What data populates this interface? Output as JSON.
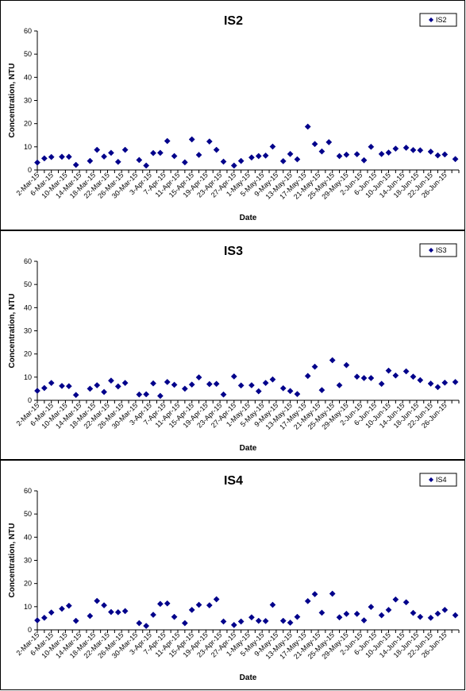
{
  "chart_data": [
    {
      "type": "scatter",
      "title": "IS2",
      "xlabel": "Date",
      "ylabel": "Concentration, NTU",
      "ylim": [
        0,
        60
      ],
      "yticks": [
        0,
        10,
        20,
        30,
        40,
        50,
        60
      ],
      "xlim": [
        "2015-03-02",
        "2015-06-30"
      ],
      "xtick_labels": [
        "2-Mar-15",
        "6-Mar-15",
        "10-Mar-15",
        "14-Mar-15",
        "18-Mar-15",
        "22-Mar-15",
        "26-Mar-15",
        "30-Mar-15",
        "3-Apr-15",
        "7-Apr-15",
        "11-Apr-15",
        "15-Apr-15",
        "19-Apr-15",
        "23-Apr-15",
        "27-Apr-15",
        "1-May-15",
        "5-May-15",
        "9-May-15",
        "13-May-15",
        "17-May-15",
        "21-May-15",
        "25-May-15",
        "29-May-15",
        "2-Jun-15",
        "6-Jun-15",
        "10-Jun-15",
        "14-Jun-15",
        "18-Jun-15",
        "22-Jun-15",
        "26-Jun-15"
      ],
      "legend_position": "top-right",
      "color": "#00008B",
      "series": [
        {
          "name": "IS2",
          "x": [
            "2015-03-02",
            "2015-03-04",
            "2015-03-06",
            "2015-03-09",
            "2015-03-11",
            "2015-03-13",
            "2015-03-17",
            "2015-03-19",
            "2015-03-21",
            "2015-03-23",
            "2015-03-25",
            "2015-03-27",
            "2015-03-31",
            "2015-04-02",
            "2015-04-04",
            "2015-04-06",
            "2015-04-08",
            "2015-04-10",
            "2015-04-13",
            "2015-04-15",
            "2015-04-17",
            "2015-04-20",
            "2015-04-22",
            "2015-04-24",
            "2015-04-27",
            "2015-04-29",
            "2015-05-02",
            "2015-05-04",
            "2015-05-06",
            "2015-05-08",
            "2015-05-11",
            "2015-05-13",
            "2015-05-15",
            "2015-05-18",
            "2015-05-20",
            "2015-05-22",
            "2015-05-24",
            "2015-05-27",
            "2015-05-29",
            "2015-06-01",
            "2015-06-03",
            "2015-06-05",
            "2015-06-08",
            "2015-06-10",
            "2015-06-12",
            "2015-06-15",
            "2015-06-17",
            "2015-06-19",
            "2015-06-22",
            "2015-06-24",
            "2015-06-26",
            "2015-06-29"
          ],
          "y": [
            3.2,
            5.0,
            5.6,
            5.7,
            5.7,
            2.2,
            3.9,
            8.7,
            5.8,
            7.4,
            3.5,
            8.7,
            4.3,
            1.9,
            7.3,
            7.4,
            12.5,
            6.0,
            3.3,
            13.2,
            6.5,
            12.3,
            8.7,
            3.6,
            1.9,
            3.9,
            5.4,
            6.0,
            6.2,
            10.1,
            3.8,
            6.9,
            4.6,
            18.7,
            11.2,
            8.0,
            12.0,
            6.0,
            6.6,
            6.8,
            4.2,
            10.0,
            6.9,
            7.5,
            9.2,
            9.6,
            8.6,
            8.5,
            7.9,
            6.3,
            6.7,
            4.7
          ]
        }
      ]
    },
    {
      "type": "scatter",
      "title": "IS3",
      "xlabel": "Date",
      "ylabel": "Concentration, NTU",
      "ylim": [
        0,
        60
      ],
      "yticks": [
        0,
        10,
        20,
        30,
        40,
        50,
        60
      ],
      "xlim": [
        "2015-03-02",
        "2015-06-30"
      ],
      "xtick_labels": [
        "2-Mar-15",
        "6-Mar-15",
        "10-Mar-15",
        "14-Mar-15",
        "18-Mar-15",
        "22-Mar-15",
        "26-Mar-15",
        "30-Mar-15",
        "3-Apr-15",
        "7-Apr-15",
        "11-Apr-15",
        "15-Apr-15",
        "19-Apr-15",
        "23-Apr-15",
        "27-Apr-15",
        "1-May-15",
        "5-May-15",
        "9-May-15",
        "13-May-15",
        "17-May-15",
        "21-May-15",
        "25-May-15",
        "29-May-15",
        "2-Jun-15",
        "6-Jun-15",
        "10-Jun-15",
        "14-Jun-15",
        "18-Jun-15",
        "22-Jun-15",
        "26-Jun-15"
      ],
      "legend_position": "top-right",
      "color": "#00008B",
      "series": [
        {
          "name": "IS3",
          "x": [
            "2015-03-02",
            "2015-03-04",
            "2015-03-06",
            "2015-03-09",
            "2015-03-11",
            "2015-03-13",
            "2015-03-17",
            "2015-03-19",
            "2015-03-21",
            "2015-03-23",
            "2015-03-25",
            "2015-03-27",
            "2015-03-31",
            "2015-04-02",
            "2015-04-04",
            "2015-04-06",
            "2015-04-08",
            "2015-04-10",
            "2015-04-13",
            "2015-04-15",
            "2015-04-17",
            "2015-04-20",
            "2015-04-22",
            "2015-04-24",
            "2015-04-27",
            "2015-04-29",
            "2015-05-02",
            "2015-05-04",
            "2015-05-06",
            "2015-05-08",
            "2015-05-11",
            "2015-05-13",
            "2015-05-15",
            "2015-05-18",
            "2015-05-20",
            "2015-05-22",
            "2015-05-25",
            "2015-05-27",
            "2015-05-29",
            "2015-06-01",
            "2015-06-03",
            "2015-06-05",
            "2015-06-08",
            "2015-06-10",
            "2015-06-12",
            "2015-06-15",
            "2015-06-17",
            "2015-06-19",
            "2015-06-22",
            "2015-06-24",
            "2015-06-26",
            "2015-06-29"
          ],
          "y": [
            4.1,
            5.3,
            7.5,
            6.2,
            6.1,
            2.3,
            5.0,
            6.5,
            3.6,
            8.5,
            6.0,
            7.5,
            2.5,
            2.6,
            7.3,
            1.9,
            7.9,
            6.7,
            5.0,
            6.8,
            9.9,
            7.0,
            7.1,
            2.5,
            10.3,
            6.4,
            6.5,
            3.9,
            7.5,
            9.0,
            5.2,
            4.0,
            2.7,
            10.5,
            14.5,
            4.4,
            17.3,
            6.5,
            15.2,
            10.2,
            9.6,
            9.6,
            7.1,
            12.8,
            10.7,
            12.5,
            10.2,
            8.7,
            7.2,
            5.7,
            7.6,
            7.9
          ]
        }
      ]
    },
    {
      "type": "scatter",
      "title": "IS4",
      "xlabel": "Date",
      "ylabel": "Concentration, NTU",
      "ylim": [
        0,
        60
      ],
      "yticks": [
        0,
        10,
        20,
        30,
        40,
        50,
        60
      ],
      "xlim": [
        "2015-03-02",
        "2015-06-30"
      ],
      "xtick_labels": [
        "2-Mar-15",
        "6-Mar-15",
        "10-Mar-15",
        "14-Mar-15",
        "18-Mar-15",
        "22-Mar-15",
        "26-Mar-15",
        "30-Mar-15",
        "3-Apr-15",
        "7-Apr-15",
        "11-Apr-15",
        "15-Apr-15",
        "19-Apr-15",
        "23-Apr-15",
        "27-Apr-15",
        "1-May-15",
        "5-May-15",
        "9-May-15",
        "13-May-15",
        "17-May-15",
        "21-May-15",
        "25-May-15",
        "29-May-15",
        "2-Jun-15",
        "6-Jun-15",
        "10-Jun-15",
        "14-Jun-15",
        "18-Jun-15",
        "22-Jun-15",
        "26-Jun-15"
      ],
      "legend_position": "top-right",
      "color": "#00008B",
      "series": [
        {
          "name": "IS4",
          "x": [
            "2015-03-02",
            "2015-03-04",
            "2015-03-06",
            "2015-03-09",
            "2015-03-11",
            "2015-03-13",
            "2015-03-17",
            "2015-03-19",
            "2015-03-21",
            "2015-03-23",
            "2015-03-25",
            "2015-03-27",
            "2015-03-31",
            "2015-04-02",
            "2015-04-04",
            "2015-04-06",
            "2015-04-08",
            "2015-04-10",
            "2015-04-13",
            "2015-04-15",
            "2015-04-17",
            "2015-04-20",
            "2015-04-22",
            "2015-04-24",
            "2015-04-27",
            "2015-04-29",
            "2015-05-02",
            "2015-05-04",
            "2015-05-06",
            "2015-05-08",
            "2015-05-11",
            "2015-05-13",
            "2015-05-15",
            "2015-05-18",
            "2015-05-20",
            "2015-05-22",
            "2015-05-25",
            "2015-05-27",
            "2015-05-29",
            "2015-06-01",
            "2015-06-03",
            "2015-06-05",
            "2015-06-08",
            "2015-06-10",
            "2015-06-12",
            "2015-06-15",
            "2015-06-17",
            "2015-06-19",
            "2015-06-22",
            "2015-06-24",
            "2015-06-26",
            "2015-06-29"
          ],
          "y": [
            4.1,
            5.2,
            7.5,
            9.1,
            10.4,
            3.9,
            6.0,
            12.5,
            10.6,
            7.7,
            7.6,
            8.1,
            2.9,
            1.7,
            6.5,
            11.2,
            11.4,
            5.6,
            2.9,
            8.6,
            10.8,
            10.6,
            13.2,
            3.6,
            2.1,
            3.6,
            5.4,
            3.9,
            3.8,
            10.8,
            3.9,
            3.1,
            5.6,
            12.4,
            15.4,
            7.4,
            15.6,
            5.4,
            6.9,
            6.9,
            4.1,
            9.9,
            6.3,
            8.6,
            13.1,
            11.9,
            7.3,
            5.6,
            5.2,
            7.0,
            8.6,
            6.3
          ]
        }
      ]
    }
  ]
}
